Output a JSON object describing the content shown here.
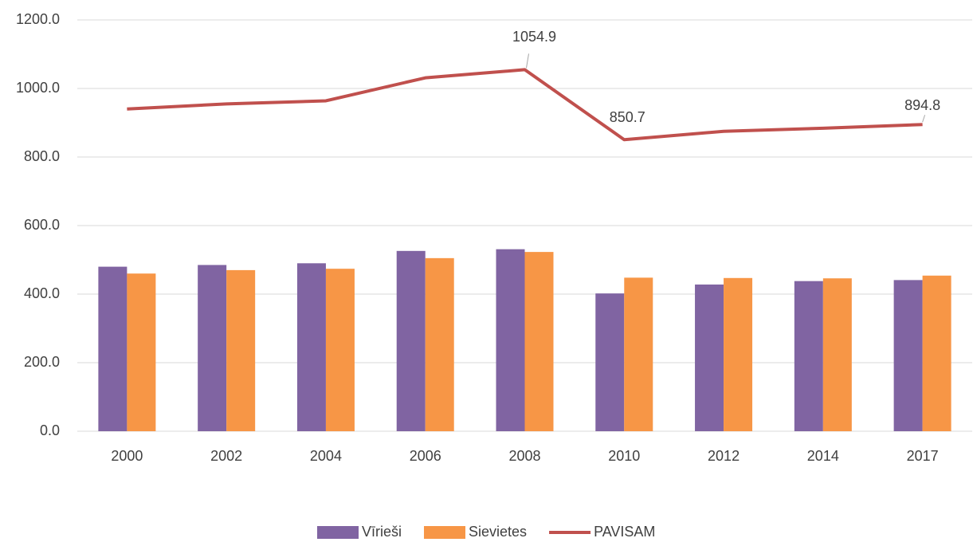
{
  "chart_data": {
    "type": "bar_line",
    "categories": [
      "2000",
      "2002",
      "2004",
      "2006",
      "2008",
      "2010",
      "2012",
      "2014",
      "2017"
    ],
    "series": [
      {
        "name": "Vīrieši",
        "color": "#8064a2",
        "type": "bar",
        "values": [
          480,
          485,
          490,
          526,
          531,
          402,
          428,
          438,
          441
        ]
      },
      {
        "name": "Sievietes",
        "color": "#f79646",
        "type": "bar",
        "values": [
          460,
          470,
          474,
          505,
          523,
          448,
          447,
          446,
          454
        ]
      },
      {
        "name": "PAVISAM",
        "color": "#c0504d",
        "type": "line",
        "values": [
          940,
          955,
          964,
          1031,
          1054.9,
          850.7,
          875,
          884,
          894.8
        ],
        "value_labels": [
          null,
          null,
          null,
          null,
          "1054.9",
          "850.7",
          null,
          null,
          "894.8"
        ]
      }
    ],
    "ylim": [
      0,
      1200
    ],
    "yticks": [
      {
        "value": 0,
        "label": "0.0"
      },
      {
        "value": 200,
        "label": "200.0"
      },
      {
        "value": 400,
        "label": "400.0"
      },
      {
        "value": 600,
        "label": "600.0"
      },
      {
        "value": 800,
        "label": "800.0"
      },
      {
        "value": 1000,
        "label": "1000.0"
      },
      {
        "value": 1200,
        "label": "1200.0"
      }
    ],
    "grid": true,
    "legend": "bottom"
  }
}
